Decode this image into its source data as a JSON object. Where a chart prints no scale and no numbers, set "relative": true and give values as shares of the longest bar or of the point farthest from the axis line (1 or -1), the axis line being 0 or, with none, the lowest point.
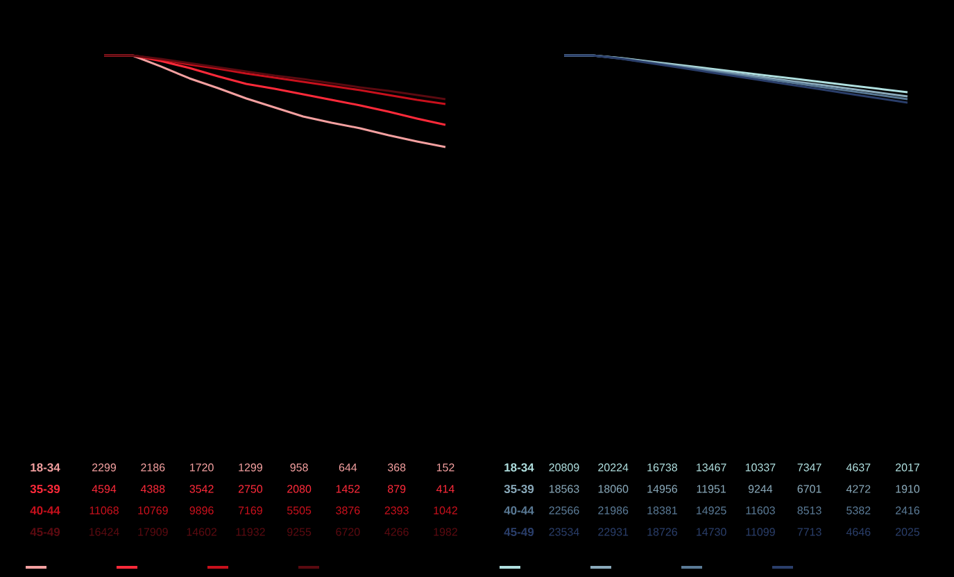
{
  "chart_data": [
    {
      "type": "line",
      "relative": true,
      "legend": "bottom",
      "categories": [
        null,
        null,
        null,
        null,
        null,
        null,
        null,
        null,
        null,
        null,
        null,
        null,
        null
      ],
      "series": [
        {
          "name": "18-34",
          "color": "#f4a0a0",
          "values": [
            1,
            1,
            0.879,
            0.75,
            0.644,
            0.53,
            0.432,
            0.333,
            0.265,
            0.205,
            0.129,
            0.061,
            0
          ]
        },
        {
          "name": "35-39",
          "color": "#ff2a3a",
          "values": [
            1,
            1,
            0.939,
            0.864,
            0.773,
            0.689,
            0.636,
            0.576,
            0.515,
            0.455,
            0.386,
            0.311,
            0.242
          ]
        },
        {
          "name": "40-44",
          "color": "#c8101c",
          "values": [
            1,
            1,
            0.955,
            0.902,
            0.856,
            0.803,
            0.758,
            0.712,
            0.667,
            0.621,
            0.568,
            0.515,
            0.47
          ]
        },
        {
          "name": "45-49",
          "color": "#5a0a10",
          "values": [
            1,
            1,
            0.962,
            0.917,
            0.871,
            0.826,
            0.78,
            0.742,
            0.697,
            0.652,
            0.614,
            0.568,
            0.523
          ]
        }
      ],
      "annotations": [
        "2299",
        "2186",
        "1720",
        "1299",
        "958",
        "644",
        "368",
        "152",
        "4594",
        "4388",
        "3542",
        "2750",
        "2080",
        "1452",
        "879",
        "414",
        "11068",
        "10769",
        "9896",
        "7169",
        "5505",
        "3876",
        "2393",
        "1042",
        "16424",
        "17909",
        "14602",
        "11932",
        "9255",
        "6720",
        "4266",
        "1982"
      ]
    },
    {
      "type": "line",
      "relative": true,
      "legend": "bottom",
      "categories": [
        null,
        null,
        null,
        null,
        null,
        null,
        null,
        null,
        null,
        null,
        null,
        null,
        null
      ],
      "series": [
        {
          "name": "18-34",
          "color": "#b0e0e0",
          "values": [
            1,
            1,
            0.946,
            0.873,
            0.801,
            0.729,
            0.656,
            0.582,
            0.51,
            0.438,
            0.365,
            0.293,
            0.221
          ]
        },
        {
          "name": "35-39",
          "color": "#8aaabb",
          "values": [
            1,
            1,
            0.94,
            0.859,
            0.779,
            0.699,
            0.616,
            0.535,
            0.454,
            0.375,
            0.293,
            0.213,
            0.132
          ]
        },
        {
          "name": "40-44",
          "color": "#5a7a96",
          "values": [
            1,
            1,
            0.935,
            0.849,
            0.763,
            0.678,
            0.591,
            0.504,
            0.418,
            0.332,
            0.246,
            0.16,
            0.074
          ]
        },
        {
          "name": "45-49",
          "color": "#2a3e6a",
          "values": [
            1,
            1,
            0.93,
            0.837,
            0.745,
            0.652,
            0.558,
            0.465,
            0.372,
            0.28,
            0.185,
            0.093,
            0
          ]
        }
      ],
      "annotations": [
        "20809",
        "20224",
        "16738",
        "13467",
        "10337",
        "7347",
        "4637",
        "2017",
        "18563",
        "18060",
        "14956",
        "11951",
        "9244",
        "6701",
        "4272",
        "1910",
        "22566",
        "21986",
        "18381",
        "14925",
        "11603",
        "8513",
        "5382",
        "2416",
        "23534",
        "22931",
        "18726",
        "14730",
        "11099",
        "7713",
        "4646",
        "2025"
      ]
    }
  ]
}
